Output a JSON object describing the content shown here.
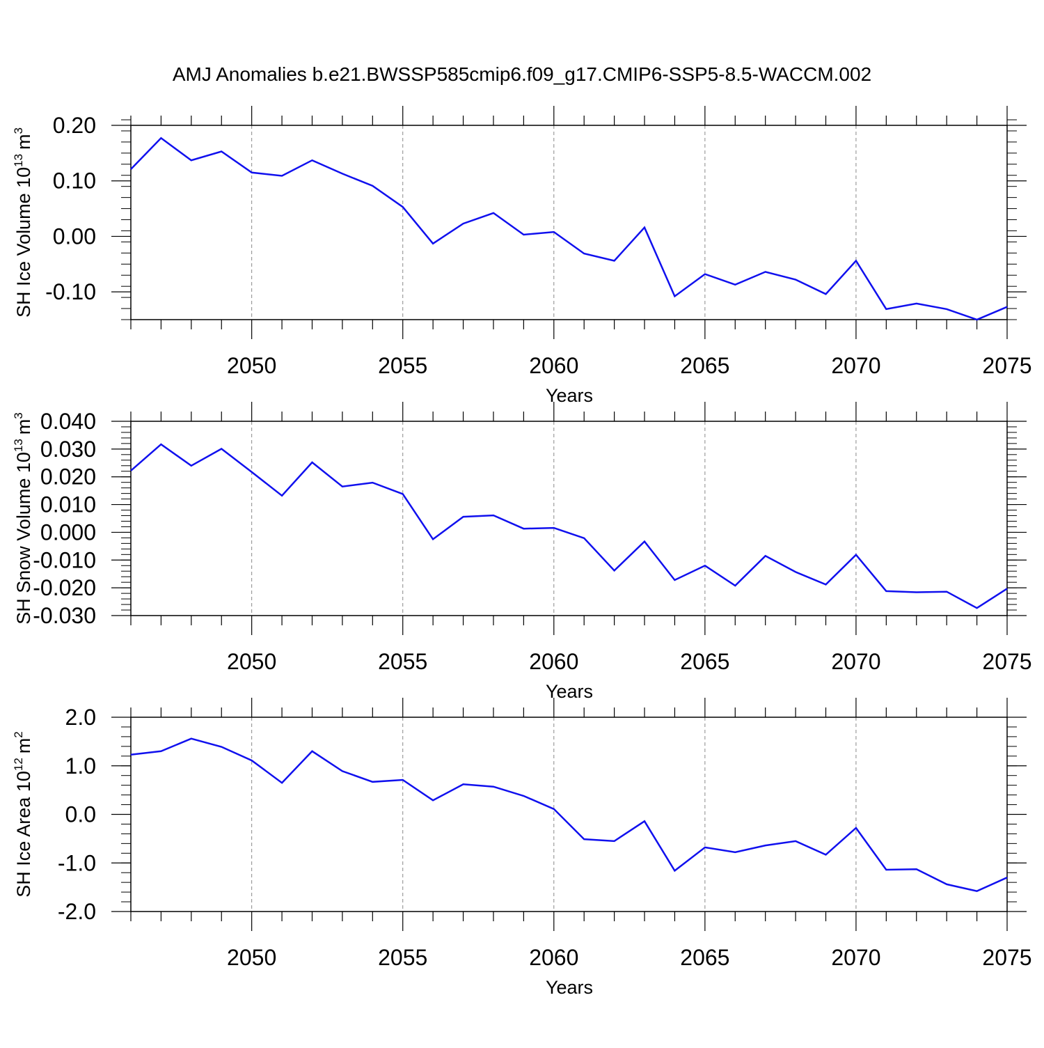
{
  "figure_title": "AMJ Anomalies b.e21.BWSSP585cmip6.f09_g17.CMIP6-SSP5-8.5-WACCM.002",
  "colors": {
    "line": "#1010ee",
    "grid": "#888888",
    "axes": "#000000"
  },
  "chart_data": [
    {
      "type": "line",
      "ylabel_main": "SH Ice Volume 10",
      "ylabel_exp": "13",
      "ylabel_unit": "m",
      "ylabel_unit_exp": "3",
      "xlabel": "Years",
      "xlim": [
        2046,
        2075
      ],
      "ylim": [
        -0.15,
        0.2
      ],
      "x_ticks": [
        2050,
        2055,
        2060,
        2065,
        2070,
        2075
      ],
      "y_ticks": [
        -0.1,
        0.0,
        0.1,
        0.2
      ],
      "y_tick_labels": [
        "-0.10",
        "0.00",
        "0.10",
        "0.20"
      ],
      "grid": "vertical dashed at major x ticks",
      "series": [
        {
          "x": [
            2046,
            2047,
            2048,
            2049,
            2050,
            2051,
            2052,
            2053,
            2054,
            2055,
            2056,
            2057,
            2058,
            2059,
            2060,
            2061,
            2062,
            2063,
            2064,
            2065,
            2066,
            2067,
            2068,
            2069,
            2070,
            2071,
            2072,
            2073,
            2074,
            2075
          ],
          "values": [
            0.121,
            0.177,
            0.137,
            0.153,
            0.115,
            0.109,
            0.137,
            0.113,
            0.091,
            0.053,
            -0.013,
            0.023,
            0.042,
            0.003,
            0.008,
            -0.031,
            -0.044,
            0.016,
            -0.108,
            -0.068,
            -0.087,
            -0.064,
            -0.078,
            -0.104,
            -0.044,
            -0.131,
            -0.121,
            -0.131,
            -0.15,
            -0.127
          ]
        }
      ]
    },
    {
      "type": "line",
      "ylabel_main": "SH Snow Volume 10",
      "ylabel_exp": "13",
      "ylabel_unit": "m",
      "ylabel_unit_exp": "3",
      "xlabel": "Years",
      "xlim": [
        2046,
        2075
      ],
      "ylim": [
        -0.03,
        0.04
      ],
      "x_ticks": [
        2050,
        2055,
        2060,
        2065,
        2070,
        2075
      ],
      "y_ticks": [
        -0.03,
        -0.02,
        -0.01,
        0.0,
        0.01,
        0.02,
        0.03,
        0.04
      ],
      "y_tick_labels": [
        "-0.030",
        "-0.020",
        "-0.010",
        "0.000",
        "0.010",
        "0.020",
        "0.030",
        "0.040"
      ],
      "grid": "vertical dashed at major x ticks",
      "series": [
        {
          "x": [
            2046,
            2047,
            2048,
            2049,
            2050,
            2051,
            2052,
            2053,
            2054,
            2055,
            2056,
            2057,
            2058,
            2059,
            2060,
            2061,
            2062,
            2063,
            2064,
            2065,
            2066,
            2067,
            2068,
            2069,
            2070,
            2071,
            2072,
            2073,
            2074,
            2075
          ],
          "values": [
            0.0222,
            0.0317,
            0.024,
            0.0301,
            0.0217,
            0.0132,
            0.0252,
            0.0165,
            0.0179,
            0.0138,
            -0.0025,
            0.0056,
            0.0061,
            0.0013,
            0.0016,
            -0.0021,
            -0.0138,
            -0.0033,
            -0.0172,
            -0.012,
            -0.0192,
            -0.0085,
            -0.0143,
            -0.0188,
            -0.0081,
            -0.0212,
            -0.0216,
            -0.0214,
            -0.0273,
            -0.0203
          ]
        }
      ]
    },
    {
      "type": "line",
      "ylabel_main": "SH Ice Area 10",
      "ylabel_exp": "12",
      "ylabel_unit": "m",
      "ylabel_unit_exp": "2",
      "xlabel": "Years",
      "xlim": [
        2046,
        2075
      ],
      "ylim": [
        -2.0,
        2.0
      ],
      "x_ticks": [
        2050,
        2055,
        2060,
        2065,
        2070,
        2075
      ],
      "y_ticks": [
        -2.0,
        -1.0,
        0.0,
        1.0,
        2.0
      ],
      "y_tick_labels": [
        "-2.0",
        "-1.0",
        "0.0",
        "1.0",
        "2.0"
      ],
      "grid": "vertical dashed at major x ticks",
      "series": [
        {
          "x": [
            2046,
            2047,
            2048,
            2049,
            2050,
            2051,
            2052,
            2053,
            2054,
            2055,
            2056,
            2057,
            2058,
            2059,
            2060,
            2061,
            2062,
            2063,
            2064,
            2065,
            2066,
            2067,
            2068,
            2069,
            2070,
            2071,
            2072,
            2073,
            2074,
            2075
          ],
          "values": [
            1.23,
            1.3,
            1.56,
            1.39,
            1.11,
            0.65,
            1.3,
            0.89,
            0.67,
            0.71,
            0.29,
            0.62,
            0.57,
            0.38,
            0.11,
            -0.51,
            -0.55,
            -0.14,
            -1.16,
            -0.68,
            -0.78,
            -0.64,
            -0.55,
            -0.83,
            -0.28,
            -1.14,
            -1.13,
            -1.44,
            -1.58,
            -1.3
          ]
        }
      ]
    }
  ]
}
